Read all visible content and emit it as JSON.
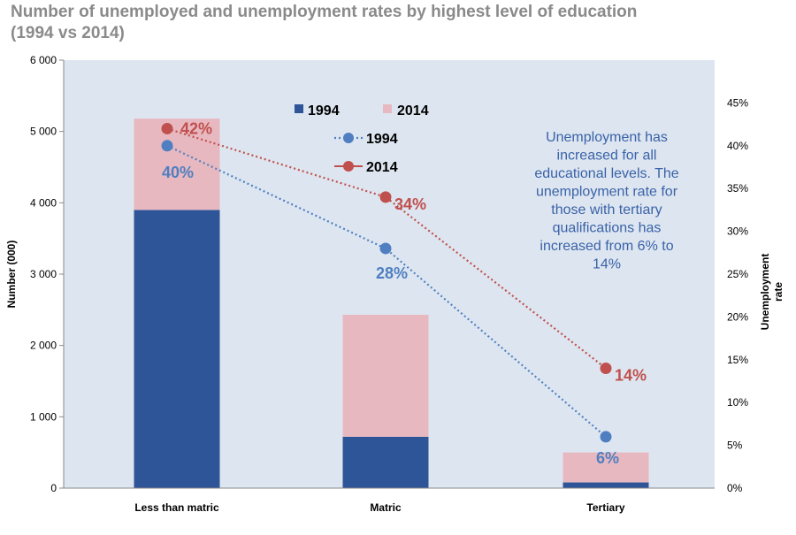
{
  "chart_data": {
    "type": "bar",
    "title_line1": "Number of unemployed and unemployment rates by highest level of education",
    "title_line2": "(1994 vs 2014)",
    "categories": [
      "Less than matric",
      "Matric",
      "Tertiary"
    ],
    "y_left": {
      "label": "Number (000)",
      "ticks": [
        0,
        1000,
        2000,
        3000,
        4000,
        5000,
        6000
      ],
      "tick_labels": [
        "0",
        "1 000",
        "2 000",
        "3 000",
        "4 000",
        "5 000",
        "6 000"
      ],
      "range": [
        0,
        6000
      ]
    },
    "y_right": {
      "label_line1": "Unemployment",
      "label_line2": "rate",
      "ticks": [
        0,
        5,
        10,
        15,
        20,
        25,
        30,
        35,
        40,
        45
      ],
      "tick_labels": [
        "0%",
        "5%",
        "10%",
        "15%",
        "20%",
        "25%",
        "30%",
        "35%",
        "40%",
        "45%"
      ],
      "range": [
        0,
        50
      ]
    },
    "bars": {
      "stacked": true,
      "series": [
        {
          "name": "1994",
          "color": "#2e5597",
          "values": [
            3900,
            720,
            80
          ]
        },
        {
          "name": "2014",
          "color": "#e8b8c0",
          "values": [
            1280,
            1710,
            420
          ]
        }
      ]
    },
    "lines": {
      "series": [
        {
          "name": "1994",
          "color": "#4f7fc0",
          "values": [
            40,
            28,
            6
          ],
          "labels": [
            "40%",
            "28%",
            "6%"
          ]
        },
        {
          "name": "2014",
          "color": "#c0504d",
          "values": [
            42,
            34,
            14
          ],
          "labels": [
            "42%",
            "34%",
            "14%"
          ]
        }
      ]
    },
    "legend": {
      "bar_1994": "1994",
      "bar_2014": "2014",
      "line_1994": "1994",
      "line_2014": "2014"
    },
    "annotation": {
      "lines": [
        "Unemployment has",
        "increased for all",
        "educational levels. The",
        "unemployment rate for",
        "those with tertiary",
        "qualifications has",
        "increased from 6% to",
        "14%"
      ],
      "color": "#3a62a8"
    },
    "plot_background": "#dde6f0",
    "grid": false
  }
}
